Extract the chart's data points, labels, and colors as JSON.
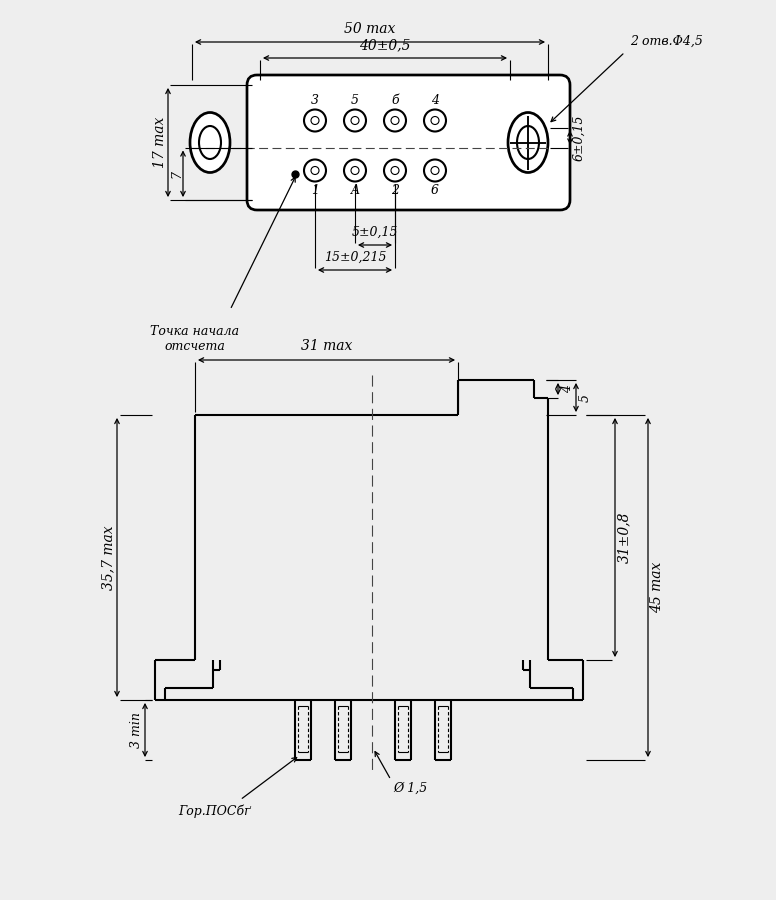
{
  "bg_color": "#eeeeee",
  "line_color": "#000000",
  "lw": 1.5,
  "top": {
    "label_50max": "50 max",
    "label_40": "40±0,5",
    "label_17max": "17 max",
    "label_7": "7",
    "label_2otv": "2 отв.Φ4,5",
    "label_5pm015": "5±0,15",
    "label_15pm0215": "15±0,215",
    "label_6pm015": "6±0,15",
    "label_tochka": "Точка начала\nотсчета",
    "pin_labels_top": [
      "3",
      "5",
      "б",
      "4"
    ],
    "pin_labels_bot": [
      "1",
      "A",
      "2",
      "6"
    ]
  },
  "bot": {
    "label_31max": "31 max",
    "label_4": "4",
    "label_5": "5",
    "label_357max": "35,7 max",
    "label_31pm08": "31±0,8",
    "label_45max": "45 max",
    "label_3min": "3 min",
    "label_d15": "Ø 1,5",
    "label_gorpos": "Гор.ПОСбґ"
  }
}
